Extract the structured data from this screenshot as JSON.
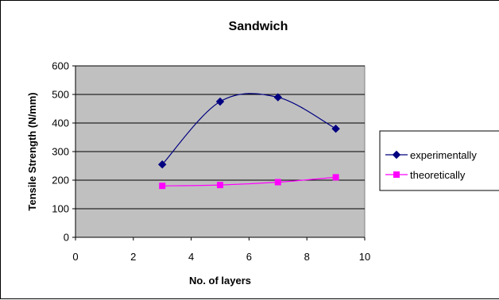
{
  "chart_data": {
    "type": "line",
    "title": "Sandwich",
    "xlabel": "No. of layers",
    "ylabel": "Tensile Strength (N/mm)",
    "xlim": [
      0,
      10
    ],
    "ylim": [
      0,
      600
    ],
    "x_ticks": [
      "0",
      "2",
      "4",
      "6",
      "8",
      "10"
    ],
    "y_ticks": [
      "0",
      "100",
      "200",
      "300",
      "400",
      "500",
      "600"
    ],
    "grid": "horizontal",
    "legend_position": "right",
    "series": [
      {
        "name": "experimentally",
        "color": "#000080",
        "marker": "diamond",
        "smooth": true,
        "x": [
          3,
          5,
          7,
          9
        ],
        "y": [
          255,
          475,
          490,
          380
        ]
      },
      {
        "name": "theoretically",
        "color": "#ff00ff",
        "marker": "square",
        "smooth": true,
        "x": [
          3,
          5,
          7,
          9
        ],
        "y": [
          180,
          183,
          193,
          210
        ]
      }
    ],
    "colors": {
      "plot_background": "#c0c0c0",
      "gridline": "#000000"
    }
  }
}
